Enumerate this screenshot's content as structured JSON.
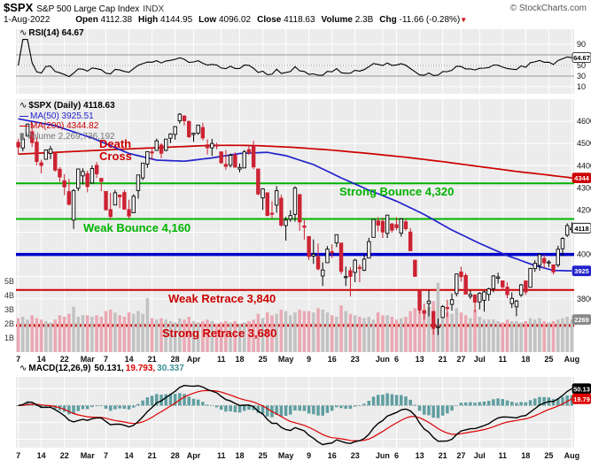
{
  "header": {
    "symbol": "$SPX",
    "name": "S&P 500 Large Cap Index",
    "exchange": "INDX",
    "copyright": "© StockCharts.com",
    "date": "1-Aug-2022",
    "quote": {
      "open_label": "Open",
      "open_value": "4112.38",
      "high_label": "High",
      "high_value": "4144.95",
      "low_label": "Low",
      "low_value": "4096.02",
      "close_label": "Close",
      "close_value": "4118.63",
      "volume_label": "Volume",
      "volume_value": "2.3B",
      "chg_label": "Chg",
      "chg_value": "-11.66 (-0.28%)",
      "chg_arrow": "▼"
    }
  },
  "rsi_panel": {
    "legend": "RSI(14) 64.67",
    "badge": "64.67"
  },
  "main_panel": {
    "legend_symbol": "$SPX (Daily) 4118.63",
    "legend_ma50": "MA(50) 3925.51",
    "legend_ma200": "MA(200) 4344.82",
    "legend_volume": "Volume 2,269,736,192",
    "badges": {
      "ma200": "4344",
      "last": "4118",
      "ma50": "3925",
      "volume": "2269"
    },
    "annotations": {
      "death_cross": "Death Cross",
      "strong_bounce": "Strong Bounce 4,320",
      "weak_bounce": "Weak Bounce 4,160",
      "weak_retrace": "Weak Retrace 3,840",
      "strong_retrace": "Strong Retrace 3,680"
    }
  },
  "macd_panel": {
    "legend_label": "MACD(12,26,9)",
    "value_macd": "50.131,",
    "value_signal": "19.793,",
    "value_hist": "30.337",
    "badge_macd": "50.13",
    "badge_signal": "19.79"
  },
  "colors": {
    "up": "#000000",
    "up_fill": "#ffffff",
    "down": "#cc2233",
    "ma50": "#2222cc",
    "ma200": "#cc0000",
    "vol_up": "#c2c2c2",
    "vol_down": "#eaa8b2",
    "green": "#00b300",
    "blue": "#0000cc",
    "red": "#cc0000",
    "hist": "#5f9ea0",
    "signal": "#dd0000",
    "macd_line": "#000000",
    "plot_bg": "#ececec",
    "grid": "#ffffff"
  },
  "chart_data": {
    "type": "candlestick",
    "title": "$SPX S&P 500 Large Cap Index (Daily) with RSI(14), MA(50), MA(200), Volume and MACD(12,26,9)",
    "price_axis": {
      "min": 3560,
      "max": 4700,
      "ticks": [
        4600,
        4500,
        4400,
        4300,
        4200,
        4000,
        3800,
        3700
      ]
    },
    "rsi_ticks": [
      90,
      50,
      30,
      10
    ],
    "rsi_guides": {
      "overbought": 70,
      "mid": 50,
      "oversold": 30
    },
    "volume_ticks": [
      {
        "label": "5B",
        "v": 5
      },
      {
        "label": "4B",
        "v": 4
      },
      {
        "label": "3B",
        "v": 3
      },
      {
        "label": "2B",
        "v": 2
      },
      {
        "label": "1B",
        "v": 1
      }
    ],
    "levels": {
      "strong_bounce": 4320,
      "weak_bounce": 4160,
      "pivot": 4000,
      "weak_retrace": 3840,
      "strong_retrace": 3680
    },
    "x_ticks": [
      {
        "label": "7",
        "i": 0
      },
      {
        "label": "14",
        "i": 5
      },
      {
        "label": "22",
        "i": 10
      },
      {
        "label": "Mar",
        "i": 15
      },
      {
        "label": "7",
        "i": 19
      },
      {
        "label": "14",
        "i": 24
      },
      {
        "label": "21",
        "i": 29
      },
      {
        "label": "28",
        "i": 34
      },
      {
        "label": "Apr",
        "i": 38
      },
      {
        "label": "11",
        "i": 44
      },
      {
        "label": "18",
        "i": 48
      },
      {
        "label": "25",
        "i": 53
      },
      {
        "label": "May",
        "i": 58
      },
      {
        "label": "9",
        "i": 63
      },
      {
        "label": "16",
        "i": 68
      },
      {
        "label": "23",
        "i": 73
      },
      {
        "label": "Jun",
        "i": 79
      },
      {
        "label": "6",
        "i": 82
      },
      {
        "label": "13",
        "i": 87
      },
      {
        "label": "21",
        "i": 92
      },
      {
        "label": "27",
        "i": 96
      },
      {
        "label": "Jul",
        "i": 100
      },
      {
        "label": "11",
        "i": 105
      },
      {
        "label": "18",
        "i": 110
      },
      {
        "label": "25",
        "i": 115
      },
      {
        "label": "Aug",
        "i": 120
      }
    ],
    "candles": [
      [
        4505,
        4521,
        4451,
        4484
      ],
      [
        4480,
        4531,
        4465,
        4521
      ],
      [
        4533,
        4590,
        4533,
        4587
      ],
      [
        4553,
        4591,
        4484,
        4504
      ],
      [
        4506,
        4526,
        4402,
        4419
      ],
      [
        4413,
        4427,
        4365,
        4401
      ],
      [
        4429,
        4472,
        4429,
        4471
      ],
      [
        4455,
        4489,
        4429,
        4475
      ],
      [
        4457,
        4457,
        4373,
        4380
      ],
      [
        4384,
        4394,
        4327,
        4349
      ],
      [
        4332,
        4362,
        4267,
        4304
      ],
      [
        4283,
        4341,
        4221,
        4226
      ],
      [
        4155,
        4295,
        4115,
        4288
      ],
      [
        4298,
        4385,
        4286,
        4385
      ],
      [
        4354,
        4388,
        4315,
        4374
      ],
      [
        4364,
        4378,
        4280,
        4306
      ],
      [
        4322,
        4401,
        4322,
        4387
      ],
      [
        4401,
        4416,
        4345,
        4363
      ],
      [
        4343,
        4343,
        4285,
        4329
      ],
      [
        4284,
        4284,
        4199,
        4201
      ],
      [
        4202,
        4277,
        4158,
        4171
      ],
      [
        4223,
        4291,
        4223,
        4278
      ],
      [
        4268,
        4268,
        4209,
        4260
      ],
      [
        4279,
        4291,
        4200,
        4204
      ],
      [
        4202,
        4247,
        4161,
        4173
      ],
      [
        4188,
        4271,
        4188,
        4262
      ],
      [
        4288,
        4358,
        4251,
        4358
      ],
      [
        4345,
        4412,
        4335,
        4412
      ],
      [
        4407,
        4465,
        4390,
        4463
      ],
      [
        4462,
        4481,
        4424,
        4461
      ],
      [
        4469,
        4522,
        4469,
        4512
      ],
      [
        4493,
        4501,
        4433,
        4456
      ],
      [
        4469,
        4520,
        4465,
        4520
      ],
      [
        4524,
        4546,
        4501,
        4543
      ],
      [
        4541,
        4578,
        4517,
        4576
      ],
      [
        4602,
        4637,
        4589,
        4632
      ],
      [
        4624,
        4627,
        4581,
        4602
      ],
      [
        4599,
        4603,
        4525,
        4530
      ],
      [
        4540,
        4548,
        4507,
        4546
      ],
      [
        4547,
        4583,
        4539,
        4583
      ],
      [
        4572,
        4593,
        4514,
        4525
      ],
      [
        4494,
        4519,
        4450,
        4481
      ],
      [
        4480,
        4521,
        4444,
        4500
      ],
      [
        4494,
        4503,
        4474,
        4488
      ],
      [
        4462,
        4464,
        4408,
        4413
      ],
      [
        4406,
        4471,
        4382,
        4397
      ],
      [
        4402,
        4454,
        4392,
        4447
      ],
      [
        4449,
        4460,
        4391,
        4393
      ],
      [
        4385,
        4410,
        4370,
        4392
      ],
      [
        4390,
        4471,
        4390,
        4462
      ],
      [
        4472,
        4488,
        4448,
        4459
      ],
      [
        4489,
        4512,
        4384,
        4394
      ],
      [
        4385,
        4387,
        4267,
        4272
      ],
      [
        4255,
        4299,
        4200,
        4296
      ],
      [
        4278,
        4278,
        4175,
        4175
      ],
      [
        4186,
        4240,
        4162,
        4184
      ],
      [
        4222,
        4308,
        4188,
        4287
      ],
      [
        4253,
        4269,
        4124,
        4132
      ],
      [
        4130,
        4169,
        4062,
        4155
      ],
      [
        4159,
        4200,
        4147,
        4175
      ],
      [
        4181,
        4307,
        4148,
        4300
      ],
      [
        4270,
        4270,
        4106,
        4147
      ],
      [
        4128,
        4157,
        4067,
        4123
      ],
      [
        4081,
        4081,
        3975,
        3991
      ],
      [
        3993,
        4068,
        3958,
        4001
      ],
      [
        3990,
        4049,
        3928,
        3935
      ],
      [
        3903,
        3964,
        3858,
        3930
      ],
      [
        3963,
        4038,
        3963,
        4024
      ],
      [
        4013,
        4046,
        3983,
        4008
      ],
      [
        4052,
        4090,
        4033,
        4089
      ],
      [
        4051,
        4051,
        3911,
        3924
      ],
      [
        3899,
        3945,
        3858,
        3900
      ],
      [
        3927,
        3943,
        3810,
        3901
      ],
      [
        3919,
        3981,
        3875,
        3974
      ],
      [
        3942,
        3955,
        3875,
        3941
      ],
      [
        3929,
        3999,
        3925,
        3979
      ],
      [
        3984,
        4075,
        3984,
        4058
      ],
      [
        4077,
        4158,
        4077,
        4158
      ],
      [
        4151,
        4168,
        4104,
        4132
      ],
      [
        4149,
        4166,
        4074,
        4101
      ],
      [
        4095,
        4177,
        4074,
        4177
      ],
      [
        4137,
        4142,
        4098,
        4109
      ],
      [
        4134,
        4168,
        4109,
        4121
      ],
      [
        4096,
        4164,
        4080,
        4160
      ],
      [
        4147,
        4160,
        4107,
        4116
      ],
      [
        4101,
        4119,
        4017,
        4017
      ],
      [
        3974,
        3974,
        3900,
        3901
      ],
      [
        3838,
        3838,
        3734,
        3750
      ],
      [
        3746,
        3778,
        3706,
        3735
      ],
      [
        3779,
        3838,
        3721,
        3790
      ],
      [
        3743,
        3746,
        3639,
        3667
      ],
      [
        3672,
        3711,
        3637,
        3675
      ],
      [
        3716,
        3772,
        3716,
        3765
      ],
      [
        3761,
        3796,
        3718,
        3760
      ],
      [
        3775,
        3824,
        3747,
        3796
      ],
      [
        3824,
        3914,
        3811,
        3912
      ],
      [
        3921,
        3945,
        3878,
        3900
      ],
      [
        3905,
        3916,
        3820,
        3821
      ],
      [
        3811,
        3837,
        3799,
        3819
      ],
      [
        3818,
        3819,
        3739,
        3785
      ],
      [
        3786,
        3830,
        3752,
        3825
      ],
      [
        3793,
        3838,
        3742,
        3831
      ],
      [
        3820,
        3850,
        3791,
        3845
      ],
      [
        3846,
        3907,
        3830,
        3903
      ],
      [
        3893,
        3918,
        3869,
        3899
      ],
      [
        3881,
        3881,
        3838,
        3854
      ],
      [
        3852,
        3874,
        3802,
        3819
      ],
      [
        3779,
        3829,
        3759,
        3802
      ],
      [
        3764,
        3796,
        3722,
        3790
      ],
      [
        3818,
        3867,
        3808,
        3863
      ],
      [
        3881,
        3881,
        3818,
        3831
      ],
      [
        3852,
        3940,
        3852,
        3937
      ],
      [
        3936,
        3974,
        3922,
        3960
      ],
      [
        3951,
        4001,
        3927,
        3999
      ],
      [
        3982,
        3998,
        3938,
        3962
      ],
      [
        3965,
        3975,
        3943,
        3966
      ],
      [
        3953,
        3953,
        3910,
        3921
      ],
      [
        3952,
        4039,
        3942,
        4023
      ],
      [
        4026,
        4078,
        3992,
        4072
      ],
      [
        4087,
        4140,
        4079,
        4130
      ],
      [
        4112,
        4145,
        4096,
        4119
      ]
    ],
    "volume_billions": [
      2.4,
      2.5,
      2.3,
      2.6,
      2.4,
      2.3,
      2.2,
      2.1,
      2.3,
      2.6,
      2.5,
      2.7,
      3.2,
      2.5,
      2.6,
      2.6,
      2.5,
      2.6,
      2.5,
      2.9,
      3.0,
      2.8,
      2.6,
      2.5,
      2.8,
      2.7,
      2.9,
      2.7,
      3.8,
      2.4,
      2.3,
      2.4,
      2.3,
      2.2,
      2.1,
      2.4,
      2.3,
      2.5,
      2.2,
      2.1,
      2.2,
      2.3,
      2.2,
      2.0,
      2.1,
      2.2,
      2.1,
      2.2,
      2.0,
      2.1,
      2.2,
      2.3,
      2.7,
      2.4,
      2.8,
      2.6,
      2.7,
      3.0,
      2.9,
      2.6,
      2.8,
      3.0,
      2.9,
      2.9,
      2.8,
      3.1,
      3.0,
      2.8,
      2.6,
      2.5,
      3.3,
      2.9,
      2.7,
      2.6,
      2.5,
      2.4,
      2.5,
      2.3,
      2.8,
      2.6,
      2.6,
      2.5,
      2.3,
      2.4,
      2.5,
      2.9,
      3.1,
      3.4,
      3.0,
      3.2,
      3.6,
      4.9,
      2.9,
      2.8,
      2.7,
      3.1,
      2.8,
      2.6,
      2.4,
      3.0,
      2.5,
      2.3,
      2.3,
      2.3,
      2.2,
      2.1,
      2.3,
      2.2,
      2.2,
      2.1,
      2.2,
      2.4,
      2.3,
      2.4,
      2.2,
      2.1,
      2.2,
      2.3,
      2.4,
      2.5,
      2.3
    ],
    "ma50_keypoints": [
      [
        0,
        4611
      ],
      [
        8,
        4580
      ],
      [
        16,
        4525
      ],
      [
        24,
        4455
      ],
      [
        30,
        4425
      ],
      [
        36,
        4420
      ],
      [
        42,
        4435
      ],
      [
        48,
        4455
      ],
      [
        54,
        4460
      ],
      [
        58,
        4445
      ],
      [
        64,
        4405
      ],
      [
        70,
        4345
      ],
      [
        76,
        4290
      ],
      [
        82,
        4240
      ],
      [
        88,
        4180
      ],
      [
        94,
        4110
      ],
      [
        100,
        4050
      ],
      [
        106,
        3995
      ],
      [
        112,
        3950
      ],
      [
        116,
        3928
      ],
      [
        120,
        3926
      ]
    ],
    "ma200_keypoints": [
      [
        0,
        4452
      ],
      [
        10,
        4462
      ],
      [
        20,
        4472
      ],
      [
        30,
        4481
      ],
      [
        40,
        4490
      ],
      [
        46,
        4492
      ],
      [
        52,
        4490
      ],
      [
        60,
        4482
      ],
      [
        68,
        4470
      ],
      [
        76,
        4455
      ],
      [
        84,
        4438
      ],
      [
        92,
        4418
      ],
      [
        100,
        4396
      ],
      [
        108,
        4374
      ],
      [
        114,
        4360
      ],
      [
        120,
        4345
      ]
    ],
    "indicators": {
      "rsi_period": 14,
      "macd": [
        12,
        26,
        9
      ],
      "rsi_last": 64.67,
      "macd_last": 50.131,
      "signal_last": 19.793,
      "hist_last": 30.337
    }
  }
}
